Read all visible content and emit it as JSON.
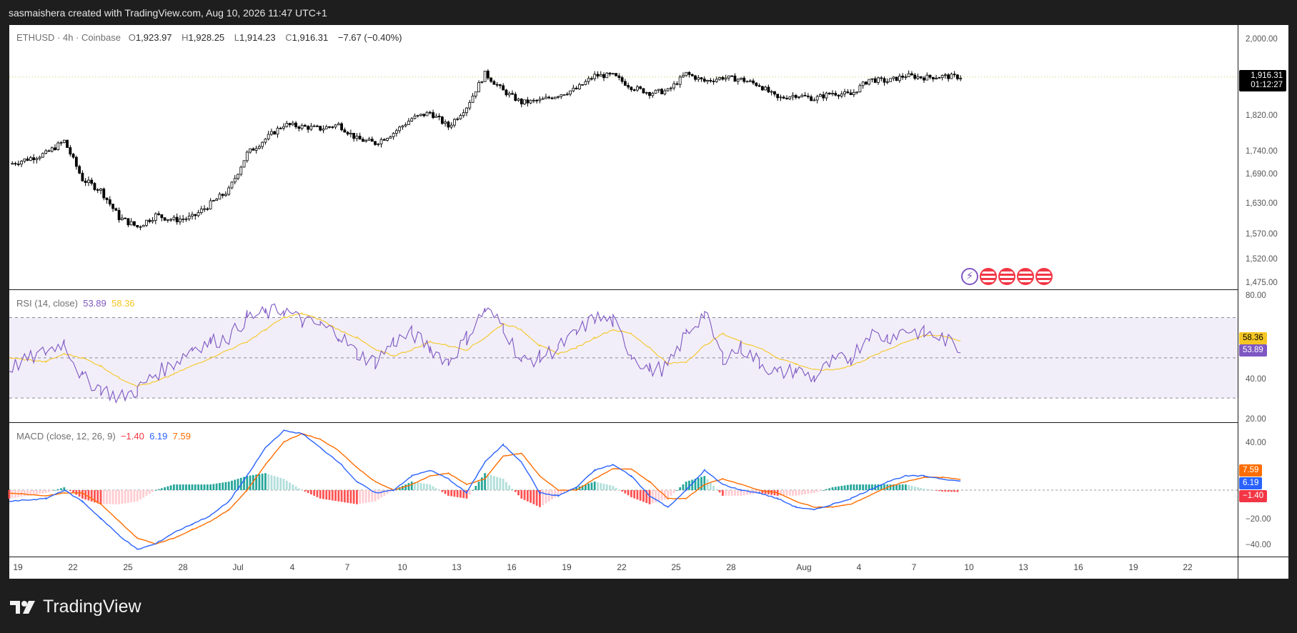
{
  "caption": "sasmaishera created with TradingView.com, Aug 10, 2026 11:47 UTC+1",
  "brand": "TradingView",
  "legend": {
    "symbol": "ETHUSD · 4h · Coinbase",
    "o_label": "O",
    "o": "1,923.97",
    "h_label": "H",
    "h": "1,928.25",
    "l_label": "L",
    "l": "1,914.23",
    "c_label": "C",
    "c": "1,916.31",
    "change": "−7.67 (−0.40%)"
  },
  "rsi_legend": {
    "label": "RSI (14, close)",
    "rsi": "53.89",
    "ma": "58.36"
  },
  "macd_legend": {
    "label": "MACD (close, 12, 26, 9)",
    "hist": "−1.40",
    "macd": "6.19",
    "signal": "7.59"
  },
  "tags": {
    "price": "1,916.31",
    "countdown": "01:12:27",
    "rsi_ma": "58.36",
    "rsi": "53.89",
    "macd_signal": "7.59",
    "macd": "6.19",
    "macd_hist": "−1.40"
  },
  "colors": {
    "up": "#089981",
    "down": "#f23645",
    "candle": "#000000",
    "rsi": "#7e57c2",
    "rsi_ma": "#f5c623",
    "macd": "#2962ff",
    "signal": "#ff6d00",
    "price_tag": "#000000"
  },
  "icons": [
    "lightning-event-icon",
    "us-flag-event-icon",
    "us-flag-event-icon",
    "us-flag-event-icon",
    "us-flag-event-icon"
  ],
  "chart_data": [
    {
      "type": "candlestick",
      "title": "ETHUSD · 4h · Coinbase",
      "y_ticks": [
        "2,000.00",
        "1,820.00",
        "1,740.00",
        "1,690.00",
        "1,630.00",
        "1,570.00",
        "1,520.00",
        "1,475.00"
      ],
      "ylim": [
        1475,
        2030
      ],
      "scale": "log",
      "x_ticks": [
        "19",
        "22",
        "25",
        "28",
        "Jul",
        "4",
        "7",
        "10",
        "13",
        "16",
        "19",
        "22",
        "25",
        "28",
        "Aug",
        "4",
        "7",
        "10",
        "13",
        "16",
        "19",
        "22"
      ],
      "close_path": {
        "x": [
          "Jun 19",
          "Jun 21",
          "Jun 22",
          "Jun 23",
          "Jun 24",
          "Jun 25",
          "Jun 26",
          "Jun 27",
          "Jun 28",
          "Jun 29",
          "Jun 30",
          "Jul 1",
          "Jul 2",
          "Jul 3",
          "Jul 4",
          "Jul 5",
          "Jul 6",
          "Jul 7",
          "Jul 8",
          "Jul 9",
          "Jul 10",
          "Jul 11",
          "Jul 12",
          "Jul 13",
          "Jul 14",
          "Jul 15",
          "Jul 16",
          "Jul 17",
          "Jul 18",
          "Jul 19",
          "Jul 20",
          "Jul 21",
          "Jul 22",
          "Jul 23",
          "Jul 24",
          "Jul 25",
          "Jul 26",
          "Jul 27",
          "Jul 28",
          "Jul 29",
          "Jul 30",
          "Jul 31",
          "Aug 1",
          "Aug 2",
          "Aug 3",
          "Aug 4",
          "Aug 5",
          "Aug 6",
          "Aug 7",
          "Aug 8",
          "Aug 9",
          "Aug 10"
        ],
        "close": [
          1700,
          1725,
          1755,
          1665,
          1640,
          1580,
          1560,
          1585,
          1575,
          1580,
          1610,
          1640,
          1725,
          1760,
          1795,
          1790,
          1785,
          1795,
          1760,
          1750,
          1775,
          1810,
          1825,
          1790,
          1840,
          1925,
          1880,
          1850,
          1855,
          1870,
          1885,
          1920,
          1920,
          1890,
          1875,
          1880,
          1925,
          1905,
          1915,
          1910,
          1895,
          1860,
          1870,
          1860,
          1875,
          1870,
          1910,
          1905,
          1920,
          1915,
          1918,
          1916.31
        ]
      }
    },
    {
      "type": "line",
      "title": "RSI (14, close)",
      "y_ticks": [
        "80.00",
        "40.00",
        "20.00"
      ],
      "ylim": [
        20,
        80
      ],
      "bands": [
        70,
        50,
        30
      ],
      "series": [
        {
          "name": "RSI",
          "x": [
            "Jun 19",
            "Jun 21",
            "Jun 22",
            "Jun 23",
            "Jun 24",
            "Jun 25",
            "Jun 26",
            "Jun 27",
            "Jun 28",
            "Jun 29",
            "Jun 30",
            "Jul 1",
            "Jul 2",
            "Jul 3",
            "Jul 4",
            "Jul 5",
            "Jul 6",
            "Jul 7",
            "Jul 8",
            "Jul 9",
            "Jul 10",
            "Jul 11",
            "Jul 12",
            "Jul 13",
            "Jul 14",
            "Jul 15",
            "Jul 16",
            "Jul 17",
            "Jul 18",
            "Jul 19",
            "Jul 20",
            "Jul 21",
            "Jul 22",
            "Jul 23",
            "Jul 24",
            "Jul 25",
            "Jul 26",
            "Jul 27",
            "Jul 28",
            "Jul 29",
            "Jul 30",
            "Jul 31",
            "Aug 1",
            "Aug 2",
            "Aug 3",
            "Aug 4",
            "Aug 5",
            "Aug 6",
            "Aug 7",
            "Aug 8",
            "Aug 9",
            "Aug 10"
          ],
          "values": [
            45,
            53,
            58,
            40,
            35,
            30,
            34,
            42,
            47,
            55,
            58,
            60,
            70,
            72,
            74,
            68,
            66,
            62,
            52,
            48,
            58,
            62,
            55,
            48,
            60,
            74,
            66,
            48,
            50,
            55,
            62,
            70,
            68,
            52,
            44,
            45,
            62,
            72,
            50,
            55,
            48,
            42,
            44,
            40,
            48,
            50,
            62,
            60,
            64,
            62,
            60,
            53.89
          ]
        },
        {
          "name": "RSI MA",
          "x": [
            "Jun 19",
            "Jun 21",
            "Jun 22",
            "Jun 23",
            "Jun 24",
            "Jun 25",
            "Jun 26",
            "Jun 27",
            "Jun 28",
            "Jun 29",
            "Jun 30",
            "Jul 1",
            "Jul 2",
            "Jul 3",
            "Jul 4",
            "Jul 5",
            "Jul 6",
            "Jul 7",
            "Jul 8",
            "Jul 9",
            "Jul 10",
            "Jul 11",
            "Jul 12",
            "Jul 13",
            "Jul 14",
            "Jul 15",
            "Jul 16",
            "Jul 17",
            "Jul 18",
            "Jul 19",
            "Jul 20",
            "Jul 21",
            "Jul 22",
            "Jul 23",
            "Jul 24",
            "Jul 25",
            "Jul 26",
            "Jul 27",
            "Jul 28",
            "Jul 29",
            "Jul 30",
            "Jul 31",
            "Aug 1",
            "Aug 2",
            "Aug 3",
            "Aug 4",
            "Aug 5",
            "Aug 6",
            "Aug 7",
            "Aug 8",
            "Aug 9",
            "Aug 10"
          ],
          "values": [
            50,
            48,
            52,
            50,
            46,
            40,
            36,
            38,
            42,
            46,
            50,
            54,
            58,
            64,
            70,
            72,
            69,
            64,
            60,
            54,
            51,
            54,
            58,
            56,
            54,
            60,
            67,
            64,
            56,
            52,
            55,
            60,
            64,
            62,
            55,
            47,
            48,
            56,
            62,
            58,
            55,
            50,
            47,
            44,
            44,
            46,
            50,
            54,
            58,
            61,
            61,
            58.36
          ]
        }
      ]
    },
    {
      "type": "line",
      "title": "MACD (close, 12, 26, 9)",
      "y_ticks": [
        "40.00",
        "−20.00",
        "−40.00"
      ],
      "ylim": [
        -47,
        48
      ],
      "series": [
        {
          "name": "MACD",
          "x": [
            "Jun 19",
            "Jun 21",
            "Jun 22",
            "Jun 23",
            "Jun 24",
            "Jun 25",
            "Jun 26",
            "Jun 27",
            "Jun 28",
            "Jun 29",
            "Jun 30",
            "Jul 1",
            "Jul 2",
            "Jul 3",
            "Jul 4",
            "Jul 5",
            "Jul 6",
            "Jul 7",
            "Jul 8",
            "Jul 9",
            "Jul 10",
            "Jul 11",
            "Jul 12",
            "Jul 13",
            "Jul 14",
            "Jul 15",
            "Jul 16",
            "Jul 17",
            "Jul 18",
            "Jul 19",
            "Jul 20",
            "Jul 21",
            "Jul 22",
            "Jul 23",
            "Jul 24",
            "Jul 25",
            "Jul 26",
            "Jul 27",
            "Jul 28",
            "Jul 29",
            "Jul 30",
            "Jul 31",
            "Aug 1",
            "Aug 2",
            "Aug 3",
            "Aug 4",
            "Aug 5",
            "Aug 6",
            "Aug 7",
            "Aug 8",
            "Aug 9",
            "Aug 10"
          ],
          "values": [
            -8,
            -6,
            0,
            -8,
            -20,
            -32,
            -42,
            -38,
            -30,
            -24,
            -18,
            -8,
            10,
            30,
            42,
            40,
            30,
            20,
            6,
            -2,
            0,
            10,
            14,
            8,
            -2,
            20,
            32,
            20,
            -2,
            -4,
            2,
            14,
            18,
            10,
            -4,
            -12,
            0,
            14,
            4,
            0,
            -2,
            -6,
            -12,
            -14,
            -10,
            -6,
            0,
            6,
            10,
            10,
            8,
            6.19
          ]
        },
        {
          "name": "Signal",
          "x": [
            "Jun 19",
            "Jun 21",
            "Jun 22",
            "Jun 23",
            "Jun 24",
            "Jun 25",
            "Jun 26",
            "Jun 27",
            "Jun 28",
            "Jun 29",
            "Jun 30",
            "Jul 1",
            "Jul 2",
            "Jul 3",
            "Jul 4",
            "Jul 5",
            "Jul 6",
            "Jul 7",
            "Jul 8",
            "Jul 9",
            "Jul 10",
            "Jul 11",
            "Jul 12",
            "Jul 13",
            "Jul 14",
            "Jul 15",
            "Jul 16",
            "Jul 17",
            "Jul 18",
            "Jul 19",
            "Jul 20",
            "Jul 21",
            "Jul 22",
            "Jul 23",
            "Jul 24",
            "Jul 25",
            "Jul 26",
            "Jul 27",
            "Jul 28",
            "Jul 29",
            "Jul 30",
            "Jul 31",
            "Aug 1",
            "Aug 2",
            "Aug 3",
            "Aug 4",
            "Aug 5",
            "Aug 6",
            "Aug 7",
            "Aug 8",
            "Aug 9",
            "Aug 10"
          ],
          "values": [
            -2,
            -4,
            -2,
            -2,
            -10,
            -22,
            -34,
            -38,
            -34,
            -28,
            -22,
            -14,
            0,
            18,
            34,
            40,
            36,
            28,
            16,
            6,
            0,
            4,
            10,
            12,
            4,
            8,
            24,
            26,
            10,
            0,
            0,
            8,
            15,
            15,
            6,
            -6,
            -6,
            4,
            8,
            4,
            0,
            -2,
            -8,
            -12,
            -12,
            -10,
            -4,
            2,
            6,
            9,
            9,
            7.59
          ]
        },
        {
          "name": "Histogram",
          "x": [
            "Jun 19",
            "Jun 21",
            "Jun 22",
            "Jun 23",
            "Jun 24",
            "Jun 25",
            "Jun 26",
            "Jun 27",
            "Jun 28",
            "Jun 29",
            "Jun 30",
            "Jul 1",
            "Jul 2",
            "Jul 3",
            "Jul 4",
            "Jul 5",
            "Jul 6",
            "Jul 7",
            "Jul 8",
            "Jul 9",
            "Jul 10",
            "Jul 11",
            "Jul 12",
            "Jul 13",
            "Jul 14",
            "Jul 15",
            "Jul 16",
            "Jul 17",
            "Jul 18",
            "Jul 19",
            "Jul 20",
            "Jul 21",
            "Jul 22",
            "Jul 23",
            "Jul 24",
            "Jul 25",
            "Jul 26",
            "Jul 27",
            "Jul 28",
            "Jul 29",
            "Jul 30",
            "Jul 31",
            "Aug 1",
            "Aug 2",
            "Aug 3",
            "Aug 4",
            "Aug 5",
            "Aug 6",
            "Aug 7",
            "Aug 8",
            "Aug 9",
            "Aug 10"
          ],
          "values": [
            -6,
            -2,
            2,
            -6,
            -10,
            -10,
            -8,
            0,
            4,
            4,
            4,
            6,
            10,
            12,
            8,
            0,
            -6,
            -8,
            -10,
            -8,
            0,
            6,
            4,
            -4,
            -6,
            12,
            8,
            -6,
            -12,
            -4,
            2,
            6,
            3,
            -5,
            -10,
            -6,
            6,
            10,
            -4,
            -4,
            -2,
            -4,
            -4,
            -2,
            2,
            4,
            4,
            4,
            4,
            1,
            -1,
            -1.4
          ]
        }
      ]
    }
  ]
}
